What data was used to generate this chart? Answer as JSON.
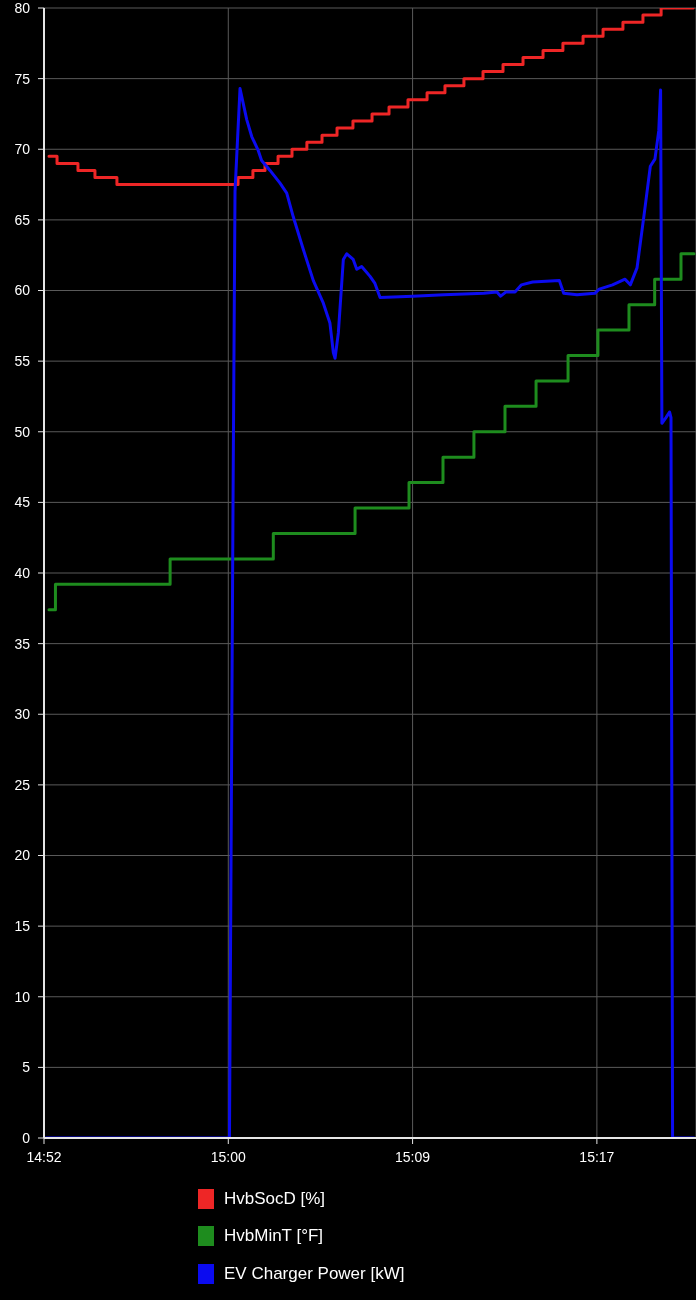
{
  "chart_data": {
    "type": "line",
    "grid": true,
    "legend": "bottom",
    "xlim": [
      14.8667,
      15.362
    ],
    "xticks": [
      {
        "value": 14.8667,
        "label": "14:52"
      },
      {
        "value": 15.0067,
        "label": "15:00"
      },
      {
        "value": 15.1467,
        "label": "15:09"
      },
      {
        "value": 15.2867,
        "label": "15:17"
      }
    ],
    "ylim": [
      0,
      80
    ],
    "yticks": [
      0,
      5,
      10,
      15,
      20,
      25,
      30,
      35,
      40,
      45,
      50,
      55,
      60,
      65,
      70,
      75,
      80
    ],
    "series": [
      {
        "name": "HvbSocD [%]",
        "color": "#ee2626",
        "type": "step",
        "x": [
          14.8705,
          14.8766,
          14.8925,
          14.9054,
          14.9221,
          15.0141,
          15.0254,
          15.0346,
          15.0445,
          15.0551,
          15.0664,
          15.0779,
          15.0893,
          15.1014,
          15.1159,
          15.1288,
          15.1432,
          15.1577,
          15.1713,
          15.1857,
          15.2002,
          15.2154,
          15.2306,
          15.2458,
          15.2609,
          15.2762,
          15.2914,
          15.3065,
          15.3217,
          15.3355,
          15.3598
        ],
        "values": [
          69.5,
          69,
          68.5,
          68,
          67.5,
          68,
          68.5,
          69,
          69.5,
          70,
          70.5,
          71,
          71.5,
          72,
          72.5,
          73,
          73.5,
          74,
          74.5,
          75,
          75.5,
          76,
          76.5,
          77,
          77.5,
          78,
          78.5,
          79,
          79.5,
          80,
          80
        ]
      },
      {
        "name": "HvbMinT [°F]",
        "color": "#1e8c1e",
        "type": "step",
        "x": [
          14.8705,
          14.8754,
          14.9625,
          15.0409,
          15.103,
          15.144,
          15.1698,
          15.1933,
          15.2169,
          15.2405,
          15.2648,
          15.2875,
          15.3111,
          15.3306,
          15.3506,
          15.3605
        ],
        "values": [
          37.4,
          39.2,
          41,
          42.8,
          44.6,
          46.4,
          48.2,
          50,
          51.8,
          53.6,
          55.4,
          57.2,
          59,
          60.8,
          62.6,
          62.6
        ]
      },
      {
        "name": "EV Charger Power [kW]",
        "color": "#0b0bf0",
        "x": [
          14.8682,
          15.0076,
          15.0103,
          15.0118,
          15.0156,
          15.0207,
          15.0245,
          15.0295,
          15.032,
          15.0384,
          15.046,
          15.0511,
          15.0561,
          15.0637,
          15.0713,
          15.0789,
          15.0839,
          15.0865,
          15.0878,
          15.0903,
          15.0941,
          15.0967,
          15.1016,
          15.1043,
          15.108,
          15.1144,
          15.1181,
          15.122,
          15.147,
          15.1706,
          15.2009,
          15.2108,
          15.2136,
          15.2177,
          15.2245,
          15.2294,
          15.2379,
          15.2582,
          15.2615,
          15.2716,
          15.2852,
          15.2885,
          15.2986,
          15.3081,
          15.3121,
          15.3172,
          15.3229,
          15.3273,
          15.3308,
          15.3337,
          15.3351,
          15.3361,
          15.3392,
          15.3419,
          15.343,
          15.3442,
          15.3605
        ],
        "values": [
          0,
          0,
          45,
          67,
          74.3,
          72.1,
          70.9,
          69.9,
          69.2,
          68.5,
          67.6,
          66.9,
          65.2,
          62.9,
          60.7,
          59.1,
          57.7,
          55.6,
          55.2,
          57,
          62.2,
          62.6,
          62.2,
          61.5,
          61.7,
          61,
          60.5,
          59.5,
          59.6,
          59.7,
          59.8,
          59.9,
          59.6,
          59.9,
          59.9,
          60.4,
          60.6,
          60.7,
          59.8,
          59.7,
          59.8,
          60.1,
          60.4,
          60.8,
          60.4,
          61.6,
          65.6,
          68.8,
          69.3,
          71.3,
          74.2,
          50.6,
          51,
          51.4,
          51,
          0,
          0
        ]
      }
    ]
  }
}
